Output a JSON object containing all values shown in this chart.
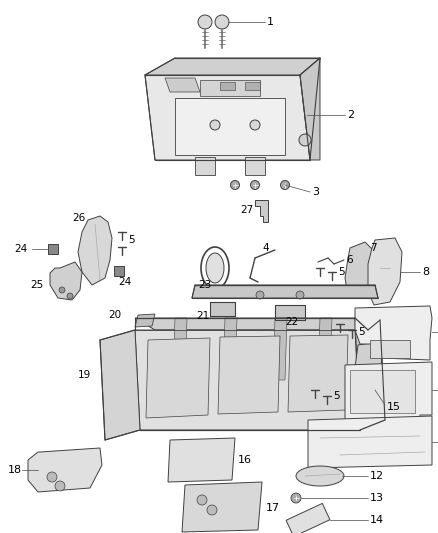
{
  "bg_color": "#ffffff",
  "line_color": "#404040",
  "figsize": [
    4.38,
    5.33
  ],
  "dpi": 100
}
